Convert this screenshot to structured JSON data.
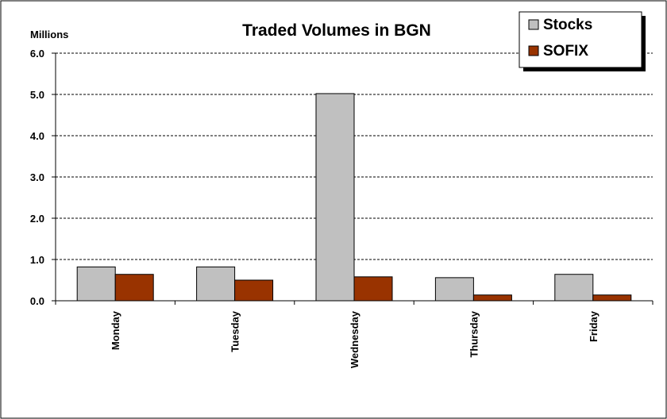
{
  "chart_data": {
    "type": "bar",
    "title": "Traded Volumes in BGN",
    "unit_label": "Millions",
    "xlabel": "",
    "ylabel": "",
    "categories": [
      "Monday",
      "Tuesday",
      "Wednesday",
      "Thursday",
      "Friday"
    ],
    "series": [
      {
        "name": "Stocks",
        "values": [
          0.82,
          0.82,
          5.02,
          0.56,
          0.64
        ],
        "color": "#c0c0c0"
      },
      {
        "name": "SOFIX",
        "values": [
          0.64,
          0.5,
          0.58,
          0.14,
          0.14
        ],
        "color": "#993300"
      }
    ],
    "ylim": [
      0,
      6
    ],
    "yticks": [
      0,
      1,
      2,
      3,
      4,
      5,
      6
    ],
    "ytick_labels": [
      "0.0",
      "1.0",
      "2.0",
      "3.0",
      "4.0",
      "5.0",
      "6.0"
    ],
    "grid": true,
    "legend_position": "top-right"
  }
}
